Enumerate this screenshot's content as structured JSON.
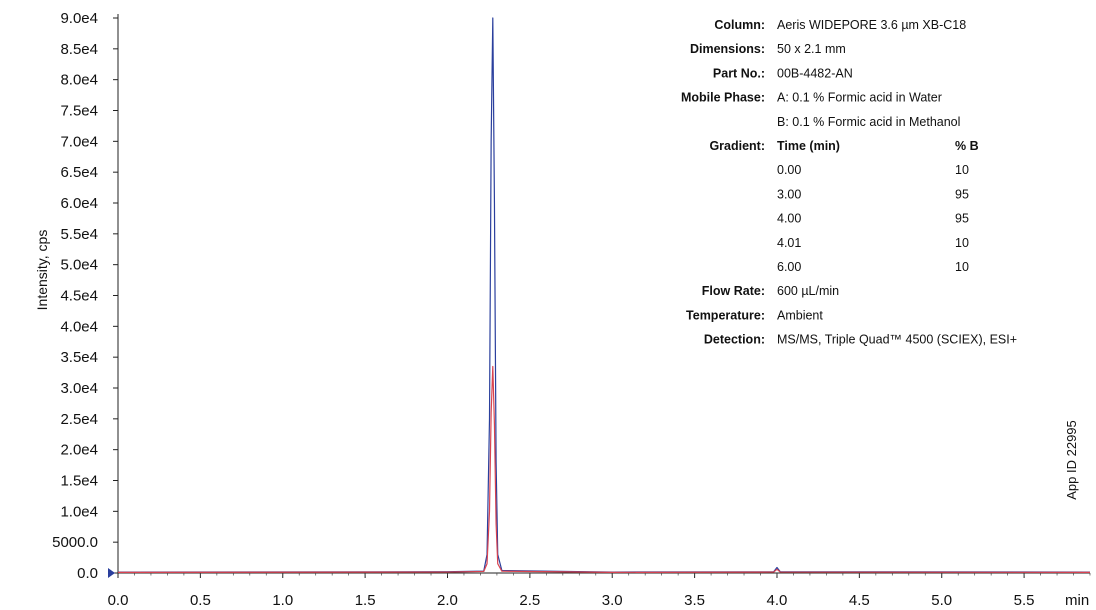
{
  "chart_data": {
    "type": "line",
    "xlabel": "min",
    "ylabel": "Intensity, cps",
    "xlim": [
      0.0,
      5.9
    ],
    "ylim": [
      0,
      90000
    ],
    "x_ticks": [
      "0.0",
      "0.5",
      "1.0",
      "1.5",
      "2.0",
      "2.5",
      "3.0",
      "3.5",
      "4.0",
      "4.5",
      "5.0",
      "5.5"
    ],
    "y_ticks": [
      "0.0",
      "5000.0",
      "1.0e4",
      "1.5e4",
      "2.0e4",
      "2.5e4",
      "3.0e4",
      "3.5e4",
      "4.0e4",
      "4.5e4",
      "5.0e4",
      "5.5e4",
      "6.0e4",
      "6.5e4",
      "7.0e4",
      "7.5e4",
      "8.0e4",
      "8.5e4",
      "9.0e4"
    ],
    "grid": false,
    "series": [
      {
        "color": "#2a3f9d",
        "x": [
          0.0,
          2.0,
          2.22,
          2.24,
          2.255,
          2.265,
          2.275,
          2.285,
          2.295,
          2.305,
          2.33,
          3.0,
          3.98,
          4.0,
          4.02,
          5.9
        ],
        "y": [
          150,
          200,
          300,
          3000,
          25000,
          70000,
          90000,
          60000,
          18000,
          3000,
          400,
          150,
          200,
          900,
          200,
          150
        ]
      },
      {
        "color": "#d9434f",
        "x": [
          0.0,
          2.0,
          2.22,
          2.24,
          2.255,
          2.265,
          2.275,
          2.285,
          2.295,
          2.305,
          2.33,
          3.0,
          3.98,
          4.0,
          4.02,
          5.9
        ],
        "y": [
          100,
          150,
          250,
          1500,
          10000,
          26000,
          33500,
          24000,
          8000,
          1500,
          300,
          100,
          150,
          600,
          150,
          100
        ]
      }
    ]
  },
  "info": [
    {
      "key": "Column:",
      "value": "Aeris WIDEPORE 3.6 µm XB-C18"
    },
    {
      "key": "Dimensions:",
      "value": "50 x 2.1 mm"
    },
    {
      "key": "Part No.:",
      "value": "00B-4482-AN"
    },
    {
      "key": "Mobile Phase:",
      "value": "A: 0.1 % Formic acid in Water"
    },
    {
      "key": "",
      "value": "B: 0.1 % Formic acid in Methanol"
    }
  ],
  "gradient": {
    "label": "Gradient:",
    "col1": "Time (min)",
    "col2": "% B",
    "rows": [
      [
        "0.00",
        "10"
      ],
      [
        "3.00",
        "95"
      ],
      [
        "4.00",
        "95"
      ],
      [
        "4.01",
        "10"
      ],
      [
        "6.00",
        "10"
      ]
    ]
  },
  "info_after": [
    {
      "key": "Flow Rate:",
      "value": "600 µL/min"
    },
    {
      "key": "Temperature:",
      "value": "Ambient"
    },
    {
      "key": "Detection:",
      "value": "MS/MS, Triple Quad™ 4500 (SCIEX), ESI+"
    }
  ],
  "app_id": "App ID 22995",
  "marker_color": "#2a3f9d"
}
